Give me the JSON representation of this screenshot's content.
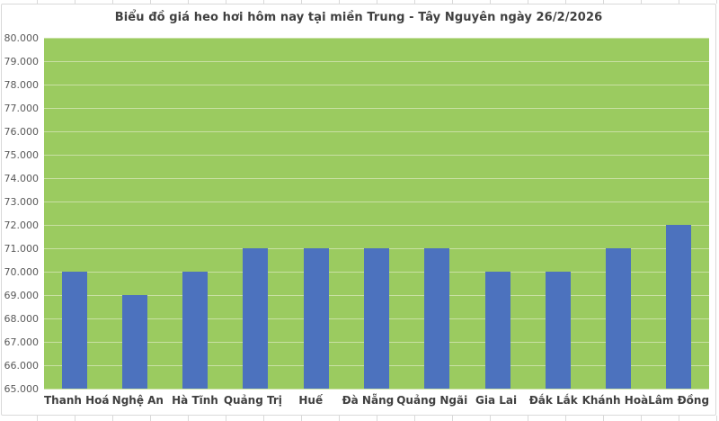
{
  "chart_data": {
    "type": "bar",
    "title": "Biểu đồ giá heo hơi hôm nay tại miền Trung - Tây Nguyên ngày 26/2/2026",
    "categories": [
      "Thanh Hoá",
      "Nghệ An",
      "Hà Tĩnh",
      "Quảng Trị",
      "Huế",
      "Đà Nẵng",
      "Quảng Ngãi",
      "Gia Lai",
      "Đắk Lắk",
      "Khánh Hoà",
      "Lâm Đồng"
    ],
    "values": [
      70000,
      69000,
      70000,
      71000,
      71000,
      71000,
      71000,
      70000,
      70000,
      71000,
      72000
    ],
    "xlabel": "",
    "ylabel": "",
    "ylim": [
      65000,
      80000
    ],
    "y_tick_step": 1000,
    "y_tick_labels": [
      "80.000",
      "79.000",
      "78.000",
      "77.000",
      "76.000",
      "75.000",
      "74.000",
      "73.000",
      "72.000",
      "71.000",
      "70.000",
      "69.000",
      "68.000",
      "67.000",
      "66.000",
      "65.000"
    ],
    "grid": true,
    "legend": "none",
    "colors": {
      "bar": "#4C72BE",
      "plot_background": "#9BCB60",
      "gridline_on_plot": "#C9E0A4",
      "title_text": "#404040",
      "y_axis_text": "#595959",
      "category_text": "#404040",
      "chart_border": "#D9D9D9",
      "sheet_gridline": "#D9D9D9"
    }
  }
}
